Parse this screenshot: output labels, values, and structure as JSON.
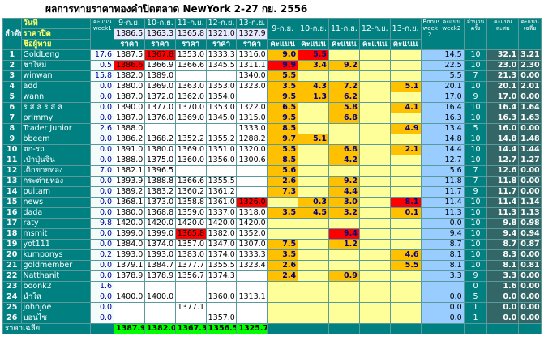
{
  "title": "ผลการทายราคาทองคำปิดตลาด NewYork 2-27 กย. 2556",
  "header": {
    "rank": "ลำดับ",
    "date": "วันที่",
    "close_label": "ราคาปิด",
    "name_label": "ชื่อผู้ทาย",
    "week1": "คะแนน week1",
    "dates": [
      "9-ก.ย.",
      "10-ก.ย.",
      "11-ก.ย.",
      "12-ก.ย.",
      "13-ก.ย."
    ],
    "closes": [
      "1386.5",
      "1363.3",
      "1365.8",
      "1321.0",
      "1327.9"
    ],
    "price_label": "ราคา",
    "score_label": "คะแนน",
    "bonus": "Bonus week 2",
    "week2": "คะแนน week2",
    "count": "จำนวน ครั้ง",
    "total": "คะแนน สะสม",
    "average": "คะแนน เฉลี่ย"
  },
  "rows": [
    {
      "rank": "1",
      "name": "GoldLeng",
      "week1": "17.6",
      "prices": [
        "1387.5",
        "1367.8",
        "1353.0",
        "1333.3",
        "1316.0"
      ],
      "scores": [
        "9.0",
        "5.5",
        null,
        null,
        null
      ],
      "bonus": null,
      "week2": "14.5",
      "count": "10",
      "total": "32.1",
      "average": "3.21"
    },
    {
      "rank": "2",
      "name": "ชาใหม่",
      "week1": "0.5",
      "prices": [
        "1386.6",
        "1366.9",
        "1366.6",
        "1345.5",
        "1311.1"
      ],
      "scores": [
        "9.9",
        "3.4",
        "9.2",
        null,
        null
      ],
      "bonus": null,
      "week2": "22.5",
      "count": "10",
      "total": "23.0",
      "average": "2.30"
    },
    {
      "rank": "3",
      "name": "winwan",
      "week1": "15.8",
      "prices": [
        "1382.0",
        "1389.0",
        null,
        null,
        "1340.0"
      ],
      "scores": [
        "5.5",
        null,
        null,
        null,
        null
      ],
      "bonus": null,
      "week2": "5.5",
      "count": "7",
      "total": "21.3",
      "average": "0.00"
    },
    {
      "rank": "4",
      "name": "add",
      "week1": "0.0",
      "prices": [
        "1380.0",
        "1369.0",
        "1363.0",
        "1353.0",
        "1323.0"
      ],
      "scores": [
        "3.5",
        "4.3",
        "7.2",
        null,
        "5.1"
      ],
      "bonus": null,
      "week2": "20.1",
      "count": "10",
      "total": "20.1",
      "average": "2.01"
    },
    {
      "rank": "5",
      "name": "wann",
      "week1": "0.0",
      "prices": [
        "1387.0",
        "1372.0",
        "1362.0",
        "1354.0",
        null
      ],
      "scores": [
        "9.5",
        "1.3",
        "6.2",
        null,
        null
      ],
      "bonus": null,
      "week2": "17.0",
      "count": "9",
      "total": "17.0",
      "average": "0.00"
    },
    {
      "rank": "6",
      "name": "ร ส ส ร ส ส",
      "week1": "0.0",
      "prices": [
        "1390.0",
        "1377.0",
        "1370.0",
        "1353.0",
        "1322.0"
      ],
      "scores": [
        "6.5",
        null,
        "5.8",
        null,
        "4.1"
      ],
      "bonus": null,
      "week2": "16.4",
      "count": "10",
      "total": "16.4",
      "average": "1.64"
    },
    {
      "rank": "7",
      "name": "primmy",
      "week1": "0.0",
      "prices": [
        "1387.0",
        "1376.0",
        "1369.0",
        "1345.0",
        "1315.0"
      ],
      "scores": [
        "9.5",
        null,
        "6.8",
        null,
        null
      ],
      "bonus": null,
      "week2": "16.3",
      "count": "10",
      "total": "16.3",
      "average": "1.63"
    },
    {
      "rank": "8",
      "name": "Trader Junior",
      "week1": "2.6",
      "prices": [
        "1388.0",
        null,
        null,
        null,
        "1333.0"
      ],
      "scores": [
        "8.5",
        null,
        null,
        null,
        "4.9"
      ],
      "bonus": null,
      "week2": "13.4",
      "count": "5",
      "total": "16.0",
      "average": "0.00"
    },
    {
      "rank": "9",
      "name": "bbeem",
      "week1": "0.0",
      "prices": [
        "1386.2",
        "1368.2",
        "1352.2",
        "1355.2",
        "1288.2"
      ],
      "scores": [
        "9.7",
        "5.1",
        null,
        null,
        null
      ],
      "bonus": null,
      "week2": "14.8",
      "count": "10",
      "total": "14.8",
      "average": "1.48"
    },
    {
      "rank": "10",
      "name": "ตก-รถ",
      "week1": "0.0",
      "prices": [
        "1391.0",
        "1380.0",
        "1369.0",
        "1351.0",
        "1320.0"
      ],
      "scores": [
        "5.5",
        null,
        "6.8",
        null,
        "2.1"
      ],
      "bonus": null,
      "week2": "14.4",
      "count": "10",
      "total": "14.4",
      "average": "1.44"
    },
    {
      "rank": "11",
      "name": "เป่าปุ่นจิ๋น",
      "week1": "0.0",
      "prices": [
        "1388.0",
        "1375.0",
        "1360.0",
        "1356.0",
        "1300.6"
      ],
      "scores": [
        "8.5",
        null,
        "4.2",
        null,
        null
      ],
      "bonus": null,
      "week2": "12.7",
      "count": "10",
      "total": "12.7",
      "average": "1.27"
    },
    {
      "rank": "12",
      "name": "เด็กขายทอง",
      "week1": "7.0",
      "prices": [
        "1382.1",
        "1396.5",
        null,
        null,
        null
      ],
      "scores": [
        "5.6",
        null,
        null,
        null,
        null
      ],
      "bonus": null,
      "week2": "5.6",
      "count": "7",
      "total": "12.6",
      "average": "0.00"
    },
    {
      "rank": "13",
      "name": "กระต่ายทอง",
      "week1": "0.0",
      "prices": [
        "1393.9",
        "1388.8",
        "1366.6",
        "1355.5",
        null
      ],
      "scores": [
        "2.6",
        null,
        "9.2",
        null,
        null
      ],
      "bonus": null,
      "week2": "11.8",
      "count": "7",
      "total": "11.8",
      "average": "0.00"
    },
    {
      "rank": "14",
      "name": "puitam",
      "week1": "0.0",
      "prices": [
        "1389.2",
        "1383.2",
        "1360.2",
        "1361.2",
        null
      ],
      "scores": [
        "7.3",
        null,
        "4.4",
        null,
        null
      ],
      "bonus": null,
      "week2": "11.7",
      "count": "9",
      "total": "11.7",
      "average": "0.00"
    },
    {
      "rank": "15",
      "name": "news",
      "week1": "0.0",
      "prices": [
        "1368.1",
        "1373.0",
        "1358.8",
        "1361.0",
        "1326.0"
      ],
      "scores": [
        null,
        "0.3",
        "3.0",
        null,
        "8.1"
      ],
      "bonus": null,
      "week2": "11.4",
      "count": "10",
      "total": "11.4",
      "average": "1.14"
    },
    {
      "rank": "16",
      "name": "dada",
      "week1": "0.0",
      "prices": [
        "1380.0",
        "1368.8",
        "1359.0",
        "1337.0",
        "1318.0"
      ],
      "scores": [
        "3.5",
        "4.5",
        "3.2",
        null,
        "0.1"
      ],
      "bonus": null,
      "week2": "11.3",
      "count": "10",
      "total": "11.3",
      "average": "1.13"
    },
    {
      "rank": "17",
      "name": "raty",
      "week1": "9.8",
      "prices": [
        "1420.0",
        "1420.0",
        "1420.0",
        "1420.0",
        "1420.0"
      ],
      "scores": [
        null,
        null,
        null,
        null,
        null
      ],
      "bonus": null,
      "week2": "0.0",
      "count": "10",
      "total": "9.8",
      "average": "0.98"
    },
    {
      "rank": "18",
      "name": "msmit",
      "week1": "0.0",
      "prices": [
        "1399.0",
        "1399.0",
        "1365.8",
        "1382.0",
        "1352.0"
      ],
      "scores": [
        null,
        null,
        "9.4",
        null,
        null
      ],
      "bonus": null,
      "week2": "9.4",
      "count": "10",
      "total": "9.4",
      "average": "0.94"
    },
    {
      "rank": "19",
      "name": "yot111",
      "week1": "0.0",
      "prices": [
        "1384.0",
        "1374.0",
        "1357.0",
        "1347.0",
        "1307.0"
      ],
      "scores": [
        "7.5",
        null,
        "1.2",
        null,
        null
      ],
      "bonus": null,
      "week2": "8.7",
      "count": "10",
      "total": "8.7",
      "average": "0.87"
    },
    {
      "rank": "20",
      "name": "kumponys",
      "week1": "0.2",
      "prices": [
        "1393.0",
        "1393.0",
        "1383.0",
        "1374.0",
        "1333.3"
      ],
      "scores": [
        "3.5",
        null,
        null,
        null,
        "4.6"
      ],
      "bonus": null,
      "week2": "8.1",
      "count": "10",
      "total": "8.3",
      "average": "0.00"
    },
    {
      "rank": "21",
      "name": "goldmember",
      "week1": "0.0",
      "prices": [
        "1379.1",
        "1384.7",
        "1377.7",
        "1355.5",
        "1323.4"
      ],
      "scores": [
        "2.6",
        null,
        null,
        null,
        "5.5"
      ],
      "bonus": null,
      "week2": "8.1",
      "count": "10",
      "total": "8.1",
      "average": "0.81"
    },
    {
      "rank": "22",
      "name": "Natthanit",
      "week1": "0.0",
      "prices": [
        "1378.9",
        "1378.9",
        "1356.7",
        "1374.3",
        null
      ],
      "scores": [
        "2.4",
        null,
        "0.9",
        null,
        null
      ],
      "bonus": null,
      "week2": "3.3",
      "count": "9",
      "total": "3.3",
      "average": "0.00"
    },
    {
      "rank": "23",
      "name": "boonk2",
      "week1": "1.6",
      "prices": [
        null,
        null,
        null,
        null,
        null
      ],
      "scores": [
        null,
        null,
        null,
        null,
        null
      ],
      "bonus": null,
      "week2": null,
      "count": "0",
      "total": "1.6",
      "average": "0.00"
    },
    {
      "rank": "24",
      "name": "น้ำใส",
      "week1": "0.0",
      "prices": [
        "1400.0",
        "1400.0",
        null,
        "1360.0",
        "1313.1"
      ],
      "scores": [
        null,
        null,
        null,
        null,
        null
      ],
      "bonus": null,
      "week2": "0.0",
      "count": "5",
      "total": "0.0",
      "average": "0.00"
    },
    {
      "rank": "25",
      "name": "johnjoe",
      "week1": "0.0",
      "prices": [
        null,
        null,
        "1377.1",
        null,
        null
      ],
      "scores": [
        null,
        null,
        null,
        null,
        null
      ],
      "bonus": null,
      "week2": "0.0",
      "count": "1",
      "total": "0.0",
      "average": "0.00"
    },
    {
      "rank": "26",
      "name": "บอนไซ",
      "week1": "0.0",
      "prices": [
        null,
        null,
        null,
        "1357.0",
        null
      ],
      "scores": [
        null,
        null,
        null,
        null,
        null
      ],
      "bonus": null,
      "week2": "0.0",
      "count": "1",
      "total": "0.0",
      "average": "0.00"
    }
  ],
  "footer": {
    "label": "ราคาเฉลี่ย",
    "averages": [
      "1387.9",
      "1382.0",
      "1367.3",
      "1356.5",
      "1325.7"
    ]
  }
}
